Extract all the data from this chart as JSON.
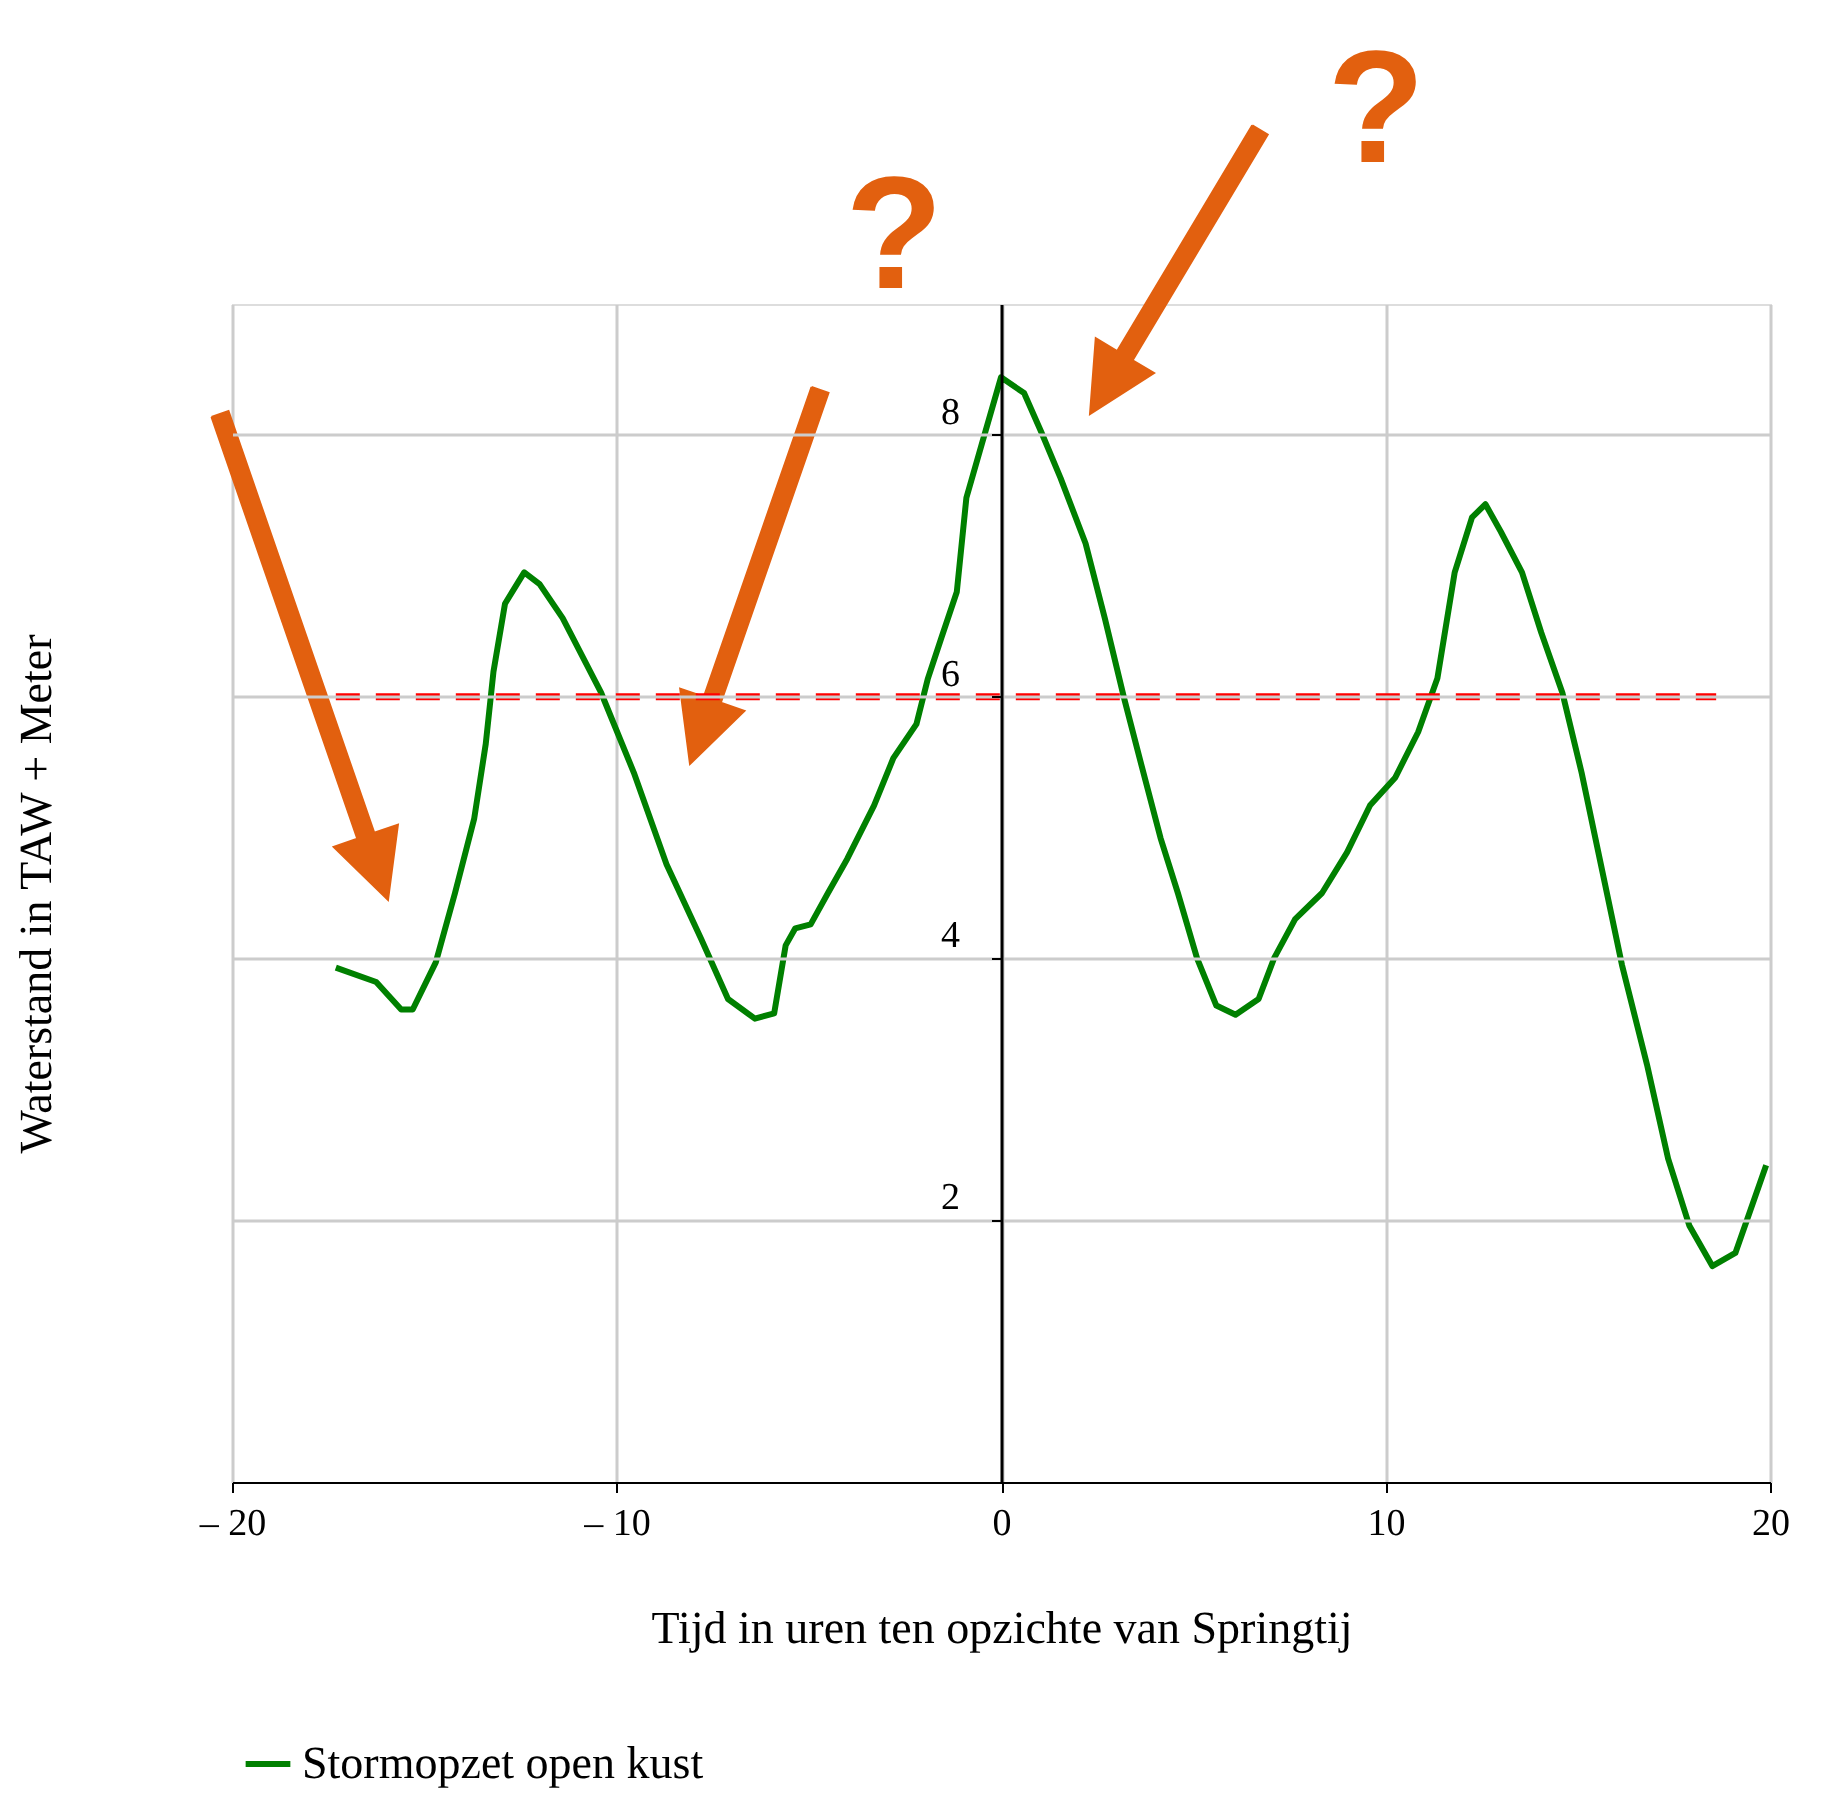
{
  "chart_data": {
    "type": "line",
    "xlabel": "Tijd in uren ten opzichte van Springtij",
    "ylabel": "Waterstand in TAW + Meter",
    "xlim": [
      -20,
      20
    ],
    "ylim": [
      0,
      9
    ],
    "xticks": [
      {
        "value": -20,
        "label": "– 20"
      },
      {
        "value": -10,
        "label": "– 10"
      },
      0,
      10,
      20
    ],
    "yticks": [
      2,
      4,
      6,
      8
    ],
    "grid": true,
    "legend": "bottom left",
    "annotations": [
      "?",
      "?"
    ],
    "series": [
      {
        "name": "Stormopzet open kust",
        "color": "#008000",
        "line_style": "solid",
        "x": [
          -17.3,
          -16.25,
          -15.6,
          -15.3,
          -14.7,
          -14.2,
          -13.7,
          -13.4,
          -13.2,
          -12.9,
          -12.4,
          -12.0,
          -11.4,
          -10.4,
          -9.55,
          -8.7,
          -7.8,
          -7.1,
          -6.4,
          -5.9,
          -5.6,
          -5.35,
          -4.95,
          -4.5,
          -4.0,
          -3.3,
          -2.8,
          -2.2,
          -1.9,
          -1.55,
          -1.15,
          -0.9,
          -0.5,
          0.0,
          0.6,
          1.05,
          1.55,
          2.2,
          2.7,
          3.2,
          3.65,
          4.15,
          4.6,
          5.1,
          5.6,
          6.1,
          6.7,
          7.1,
          7.65,
          8.35,
          9.0,
          9.6,
          10.25,
          10.85,
          11.35,
          11.8,
          12.25,
          12.6,
          13.0,
          13.55,
          14.05,
          14.6,
          15.1,
          15.6,
          16.15,
          16.8,
          17.35,
          17.9,
          18.5,
          19.1,
          19.9
        ],
        "values": [
          3.93,
          3.82,
          3.61,
          3.61,
          3.97,
          4.5,
          5.07,
          5.64,
          6.19,
          6.71,
          6.95,
          6.86,
          6.6,
          6.03,
          5.42,
          4.72,
          4.15,
          3.69,
          3.54,
          3.58,
          4.1,
          4.23,
          4.26,
          4.5,
          4.76,
          5.17,
          5.53,
          5.79,
          6.14,
          6.45,
          6.8,
          7.52,
          7.93,
          8.44,
          8.32,
          8.02,
          7.67,
          7.17,
          6.6,
          5.99,
          5.48,
          4.92,
          4.5,
          4.0,
          3.64,
          3.57,
          3.69,
          4.0,
          4.3,
          4.5,
          4.81,
          5.17,
          5.38,
          5.73,
          6.14,
          6.95,
          7.37,
          7.47,
          7.26,
          6.95,
          6.49,
          6.03,
          5.42,
          4.72,
          3.95,
          3.19,
          2.47,
          1.96,
          1.65,
          1.75,
          2.42
        ]
      },
      {
        "type": "line",
        "color": "#ff0000",
        "line_style": "dashed",
        "x": [
          -17.3,
          18.6
        ],
        "values": [
          6,
          6
        ]
      }
    ]
  }
}
